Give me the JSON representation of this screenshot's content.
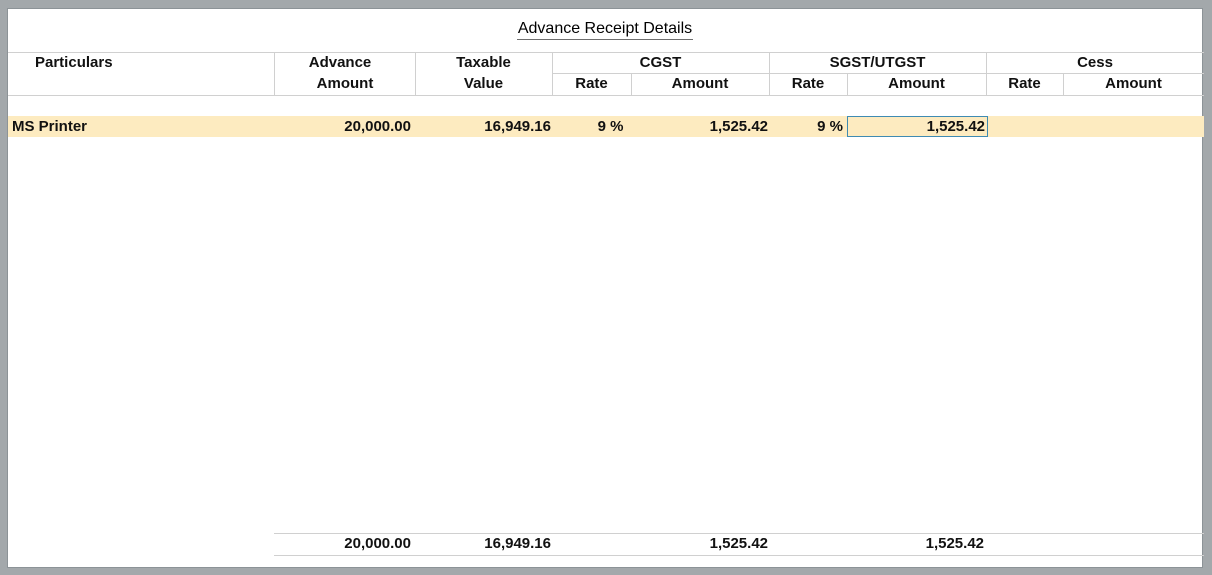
{
  "title": "Advance Receipt Details",
  "headers": {
    "particulars": "Particulars",
    "advance_line1": "Advance",
    "advance_line2": "Amount",
    "taxable_line1": "Taxable",
    "taxable_line2": "Value",
    "cgst": "CGST",
    "cgst_rate": "Rate",
    "cgst_amount": "Amount",
    "sgst": "SGST/UTGST",
    "sgst_rate": "Rate",
    "sgst_amount": "Amount",
    "cess": "Cess",
    "cess_rate": "Rate",
    "cess_amount": "Amount"
  },
  "rows": [
    {
      "particulars": "MS Printer",
      "advance_amount": "20,000.00",
      "taxable_value": "16,949.16",
      "cgst_rate": "9 %",
      "cgst_amount": "1,525.42",
      "sgst_rate": "9 %",
      "sgst_amount": "1,525.42",
      "cess_rate": "",
      "cess_amount": ""
    }
  ],
  "totals": {
    "advance_amount": "20,000.00",
    "taxable_value": "16,949.16",
    "cgst_amount": "1,525.42",
    "sgst_amount": "1,525.42"
  },
  "colors": {
    "selected_row": "#fdebc0",
    "focus_border": "#3f8bb2",
    "window_frame": "#a3a8ab"
  }
}
